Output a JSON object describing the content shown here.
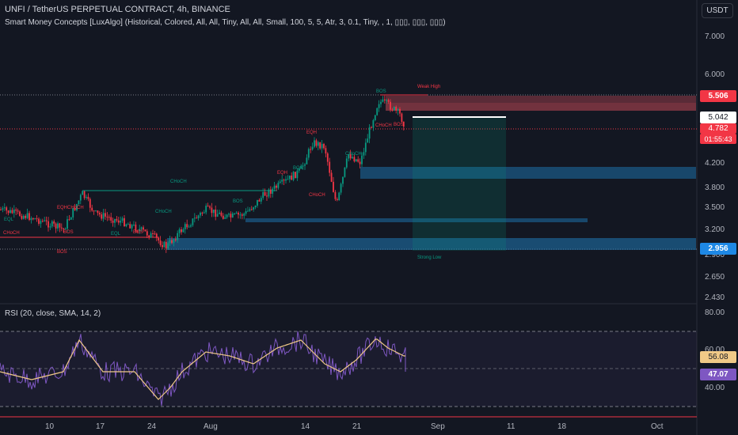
{
  "header": {
    "title": "UNFI / TetherUS PERPETUAL CONTRACT, 4h, BINANCE",
    "indicator": "Smart Money Concepts [LuxAlgo] (Historical, Colored, All, All, Tiny, All, All, Small, 100, 5, 5, Atr, 3, 0.1, Tiny, , 1, ▯▯▯, ▯▯▯, ▯▯▯)",
    "currency": "USDT"
  },
  "price_axis": {
    "ticks": [
      "7.000",
      "6.000",
      "4.200",
      "3.800",
      "3.500",
      "3.200",
      "2.900",
      "2.650",
      "2.430"
    ],
    "tags": {
      "high": "5.506",
      "cross": "5.042",
      "last_price": "4.782",
      "countdown": "01:55:43",
      "low": "2.956"
    }
  },
  "rsi_panel": {
    "label": "RSI (20, close, SMA, 14, 2)",
    "ticks": [
      "80.00",
      "60.00",
      "40.00"
    ],
    "tags": {
      "sma": "56.08",
      "rsi": "47.07"
    }
  },
  "time_axis": {
    "ticks": [
      "10",
      "17",
      "24",
      "Aug",
      "14",
      "21",
      "Sep",
      "11",
      "18",
      "Oct"
    ]
  },
  "smc_labels": {
    "weak_high": "Weak High",
    "strong_low": "Strong Low",
    "choch_main": "CHoCH",
    "bos_red": "BOS",
    "eqh": "EQH",
    "eql": "EQL",
    "bos": "BOS",
    "choch": "CHoCH",
    "eqh_choch": "EQHCHoCH"
  },
  "colors": {
    "background": "#131722",
    "bull": "#089981",
    "bear": "#f23645",
    "rsi_line": "#7e57c2",
    "rsi_sma": "#f0c987",
    "ob_blue": "#1e6fa8",
    "ob_red": "#b24552"
  }
}
